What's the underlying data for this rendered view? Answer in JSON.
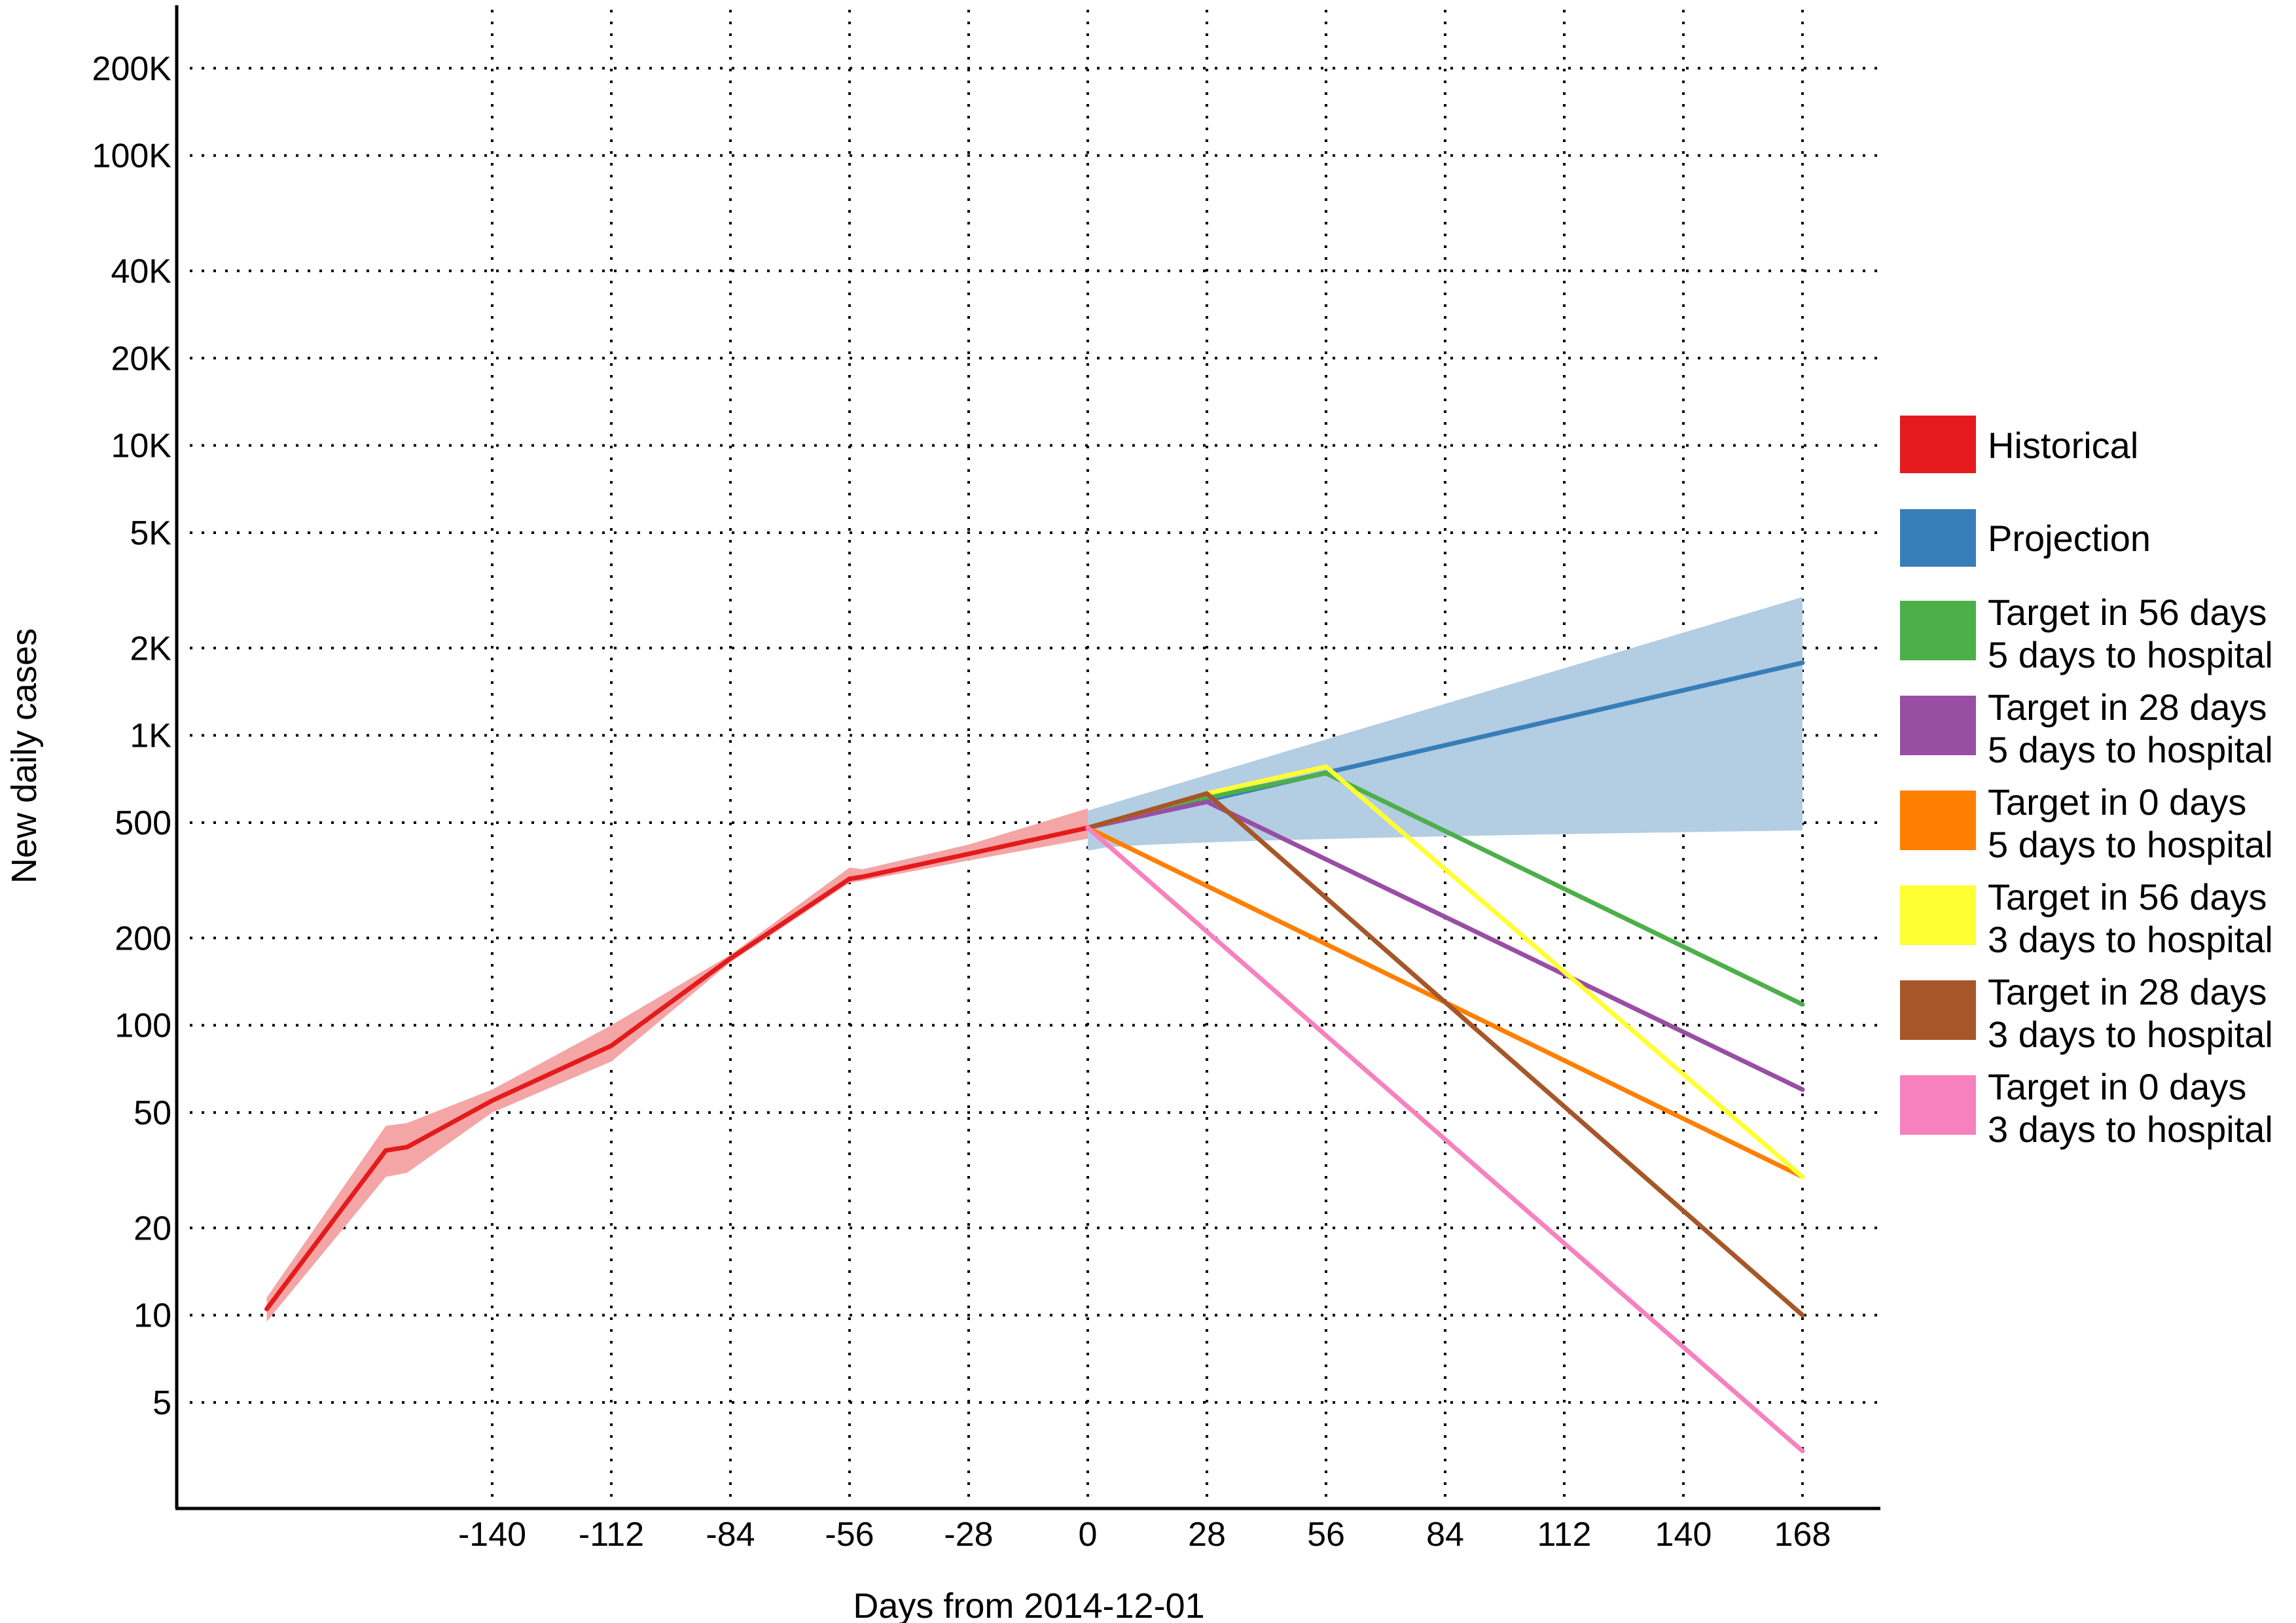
{
  "chart_data": {
    "type": "line",
    "xlabel": "Days from 2014-12-01",
    "ylabel": "New daily cases",
    "y_scale": "log",
    "grid": true,
    "legend_position": "right",
    "x_ticks": [
      -140,
      -112,
      -84,
      -56,
      -28,
      0,
      28,
      56,
      84,
      112,
      140,
      168
    ],
    "x_tick_labels": [
      "-140",
      "-112",
      "-84",
      "-56",
      "-28",
      "0",
      "28",
      "56",
      "84",
      "112",
      "140",
      "168"
    ],
    "y_ticks": [
      5,
      10,
      20,
      50,
      100,
      200,
      500,
      1000,
      2000,
      5000,
      10000,
      20000,
      40000,
      100000,
      200000
    ],
    "y_tick_labels": [
      "5",
      "10",
      "20",
      "50",
      "100",
      "200",
      "500",
      "1K",
      "2K",
      "5K",
      "10K",
      "20K",
      "40K",
      "100K",
      "200K"
    ],
    "series": [
      {
        "name": "Historical",
        "color": "#e41a1c",
        "band_color": "#f4a5a5",
        "x": [
          -193,
          -165,
          -160,
          -140,
          -112,
          -84,
          -56,
          -53,
          -28,
          0
        ],
        "y": [
          10.5,
          37,
          38,
          55,
          85,
          170,
          320,
          325,
          390,
          480
        ],
        "lower": [
          9.5,
          30,
          31,
          50,
          75,
          165,
          310,
          315,
          370,
          440
        ],
        "upper": [
          11.5,
          45,
          46,
          60,
          100,
          175,
          350,
          345,
          420,
          560
        ]
      },
      {
        "name": "Projection",
        "color": "#377eb8",
        "band_color": "#b3cde3",
        "x": [
          0,
          168
        ],
        "y": [
          480,
          1780
        ],
        "lower": [
          400,
          470
        ],
        "upper": [
          550,
          3000
        ]
      },
      {
        "name": "Target in 56 days 5 days to hospital",
        "color": "#4daf4a",
        "x": [
          0,
          28,
          56,
          168
        ],
        "y": [
          480,
          610,
          740,
          118
        ]
      },
      {
        "name": "Target in 28 days 5 days to hospital",
        "color": "#984ea3",
        "x": [
          0,
          28,
          168
        ],
        "y": [
          480,
          590,
          60
        ]
      },
      {
        "name": "Target in 0 days 5 days to hospital",
        "color": "#ff7f00",
        "x": [
          0,
          168
        ],
        "y": [
          480,
          30
        ]
      },
      {
        "name": "Target in 56 days 3 days to hospital",
        "color": "#ffff33",
        "x": [
          0,
          28,
          56,
          168
        ],
        "y": [
          480,
          630,
          780,
          30
        ]
      },
      {
        "name": "Target in 28 days 3 days to hospital",
        "color": "#a65628",
        "x": [
          0,
          28,
          168
        ],
        "y": [
          480,
          630,
          10
        ]
      },
      {
        "name": "Target in 0 days 3 days to hospital",
        "color": "#f781bf",
        "x": [
          0,
          168
        ],
        "y": [
          480,
          3.4
        ]
      }
    ],
    "legend": [
      {
        "line1": "Historical",
        "line2": "",
        "color": "#e41a1c"
      },
      {
        "line1": "Projection",
        "line2": "",
        "color": "#377eb8"
      },
      {
        "line1": "Target in 56 days",
        "line2": "5 days to hospital",
        "color": "#4daf4a"
      },
      {
        "line1": "Target in 28 days",
        "line2": "5 days to hospital",
        "color": "#984ea3"
      },
      {
        "line1": "Target in 0 days",
        "line2": "5 days to hospital",
        "color": "#ff7f00"
      },
      {
        "line1": "Target in 56 days",
        "line2": "3 days to hospital",
        "color": "#ffff33"
      },
      {
        "line1": "Target in 28 days",
        "line2": "3 days to hospital",
        "color": "#a65628"
      },
      {
        "line1": "Target in 0 days",
        "line2": "3 days to hospital",
        "color": "#f781bf"
      }
    ]
  }
}
